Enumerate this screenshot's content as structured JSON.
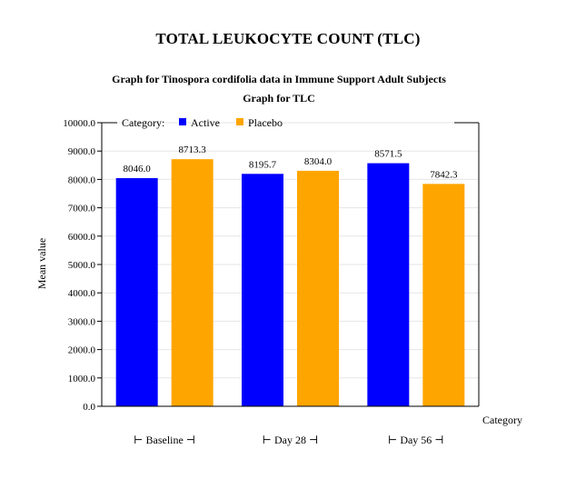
{
  "page": {
    "heading": "TOTAL LEUKOCYTE COUNT (TLC)"
  },
  "chart_data": {
    "type": "bar",
    "title": "Graph for Tinospora cordifolia data in Immune Support Adult Subjects",
    "subtitle": "Graph for TLC",
    "xlabel": "Category",
    "ylabel": "Mean value",
    "categories": [
      "Baseline",
      "Day 28",
      "Day 56"
    ],
    "category_tick_labels": [
      "⊢ Baseline ⊣",
      "⊢ Day 28 ⊣",
      "⊢ Day 56 ⊣"
    ],
    "series": [
      {
        "name": "Active",
        "color": "#0000FF",
        "values": [
          8046.0,
          8195.7,
          8571.5
        ]
      },
      {
        "name": "Placebo",
        "color": "#FFA500",
        "values": [
          8713.3,
          8304.0,
          7842.3
        ]
      }
    ],
    "value_labels": [
      [
        "8046.0",
        "8195.7",
        "8571.5"
      ],
      [
        "8713.3",
        "8304.0",
        "7842.3"
      ]
    ],
    "legend_title": "Category:",
    "legend_position": "top",
    "ylim": [
      0,
      10000
    ],
    "yticks": [
      0,
      1000,
      2000,
      3000,
      4000,
      5000,
      6000,
      7000,
      8000,
      9000,
      10000
    ],
    "ytick_labels": [
      "0.0",
      "1000.0",
      "2000.0",
      "3000.0",
      "4000.0",
      "5000.0",
      "6000.0",
      "7000.0",
      "8000.0",
      "9000.0",
      "10000.0"
    ],
    "grid": true
  }
}
